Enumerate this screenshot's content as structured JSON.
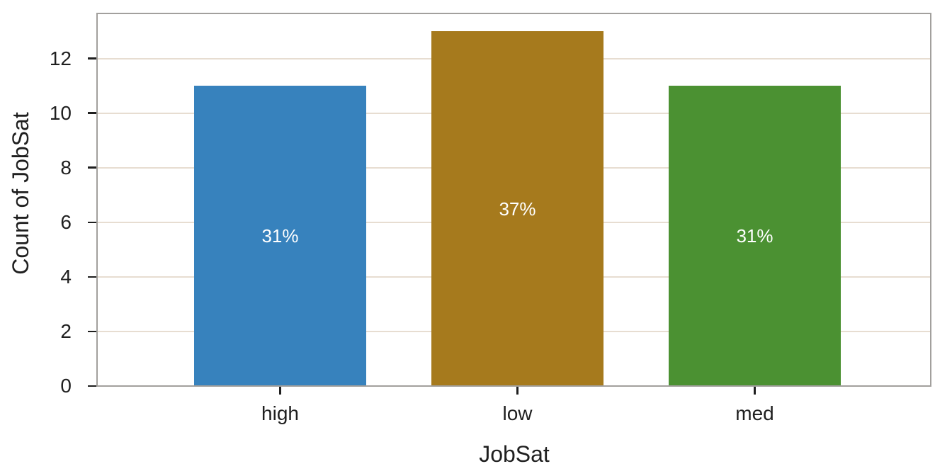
{
  "chart_data": {
    "type": "bar",
    "title": "",
    "categories": [
      "high",
      "low",
      "med"
    ],
    "values": [
      11,
      13,
      11
    ],
    "bar_labels": [
      "31%",
      "37%",
      "31%"
    ],
    "xlabel": "JobSat",
    "ylabel": "Count of JobSat",
    "yticks": [
      0,
      2,
      4,
      6,
      8,
      10,
      12
    ],
    "ylim": [
      0,
      13.65
    ],
    "grid": "horizontal",
    "legend": "none",
    "colors": [
      "#3782bd",
      "#a67a1d",
      "#4b9132"
    ],
    "bar_label_color": "#ffffff",
    "axis_color": "#1f1f1f",
    "frame_color": "#a2a09d",
    "gridline_color": "#e7ddd1",
    "background": "#ffffff"
  }
}
